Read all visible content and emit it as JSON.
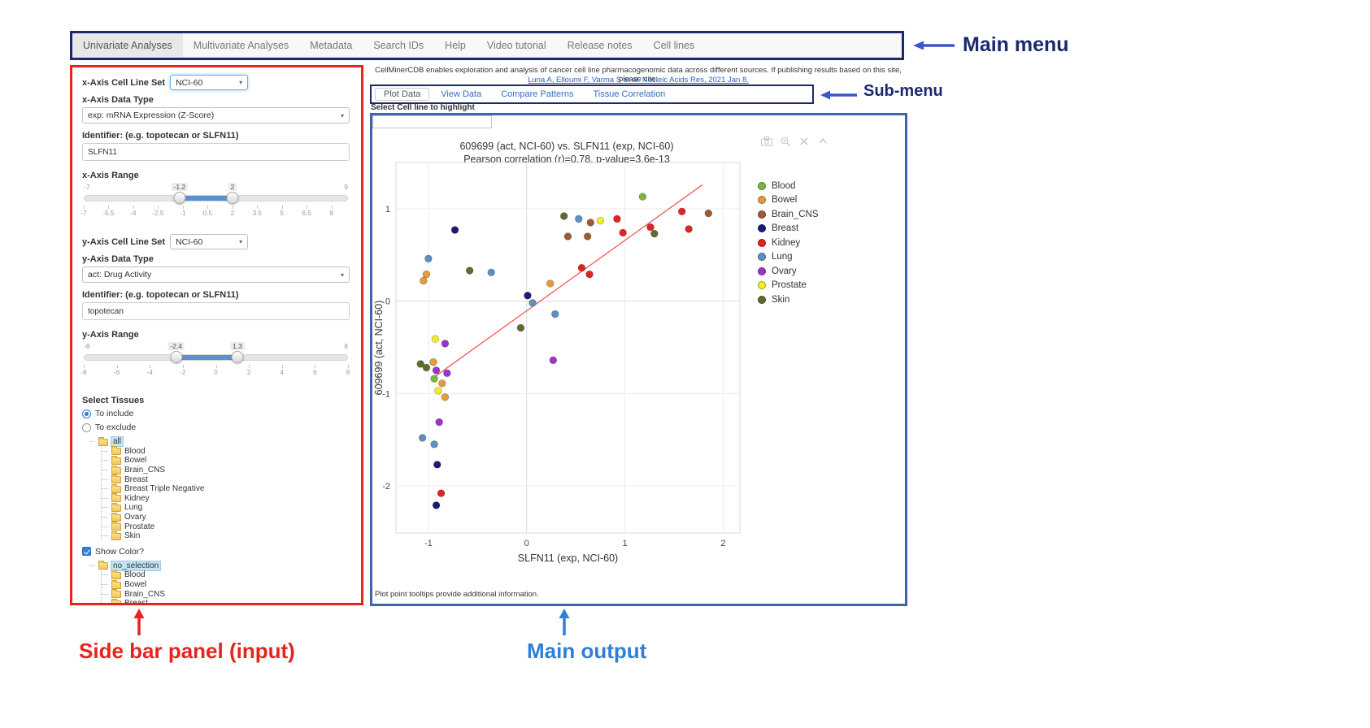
{
  "annotations": {
    "main_menu": "Main menu",
    "sub_menu": "Sub-menu",
    "sidebar": "Side bar panel (input)",
    "main_output": "Main output",
    "navy_color": "#1b2a70",
    "arrow_blue": "#3c55c8",
    "red_color": "#e8231c",
    "blue_color": "#2e7fd6"
  },
  "main_menu": {
    "items": [
      {
        "label": "Univariate Analyses",
        "active": true
      },
      {
        "label": "Multivariate Analyses",
        "active": false
      },
      {
        "label": "Metadata",
        "active": false
      },
      {
        "label": "Search IDs",
        "active": false
      },
      {
        "label": "Help",
        "active": false
      },
      {
        "label": "Video tutorial",
        "active": false
      },
      {
        "label": "Release notes",
        "active": false
      },
      {
        "label": "Cell lines",
        "active": false
      }
    ]
  },
  "citation": {
    "text": "CellMinerCDB enables exploration and analysis of cancer cell line pharmacogenomic data across different sources. If publishing results based on this site, please cite:",
    "link": "Luna A, Elloumi F, Varma S et al. Nucleic Acids Res, 2021 Jan 8."
  },
  "sub_menu": {
    "tabs": [
      {
        "label": "Plot Data",
        "active": true
      },
      {
        "label": "View Data",
        "active": false
      },
      {
        "label": "Compare Patterns",
        "active": false
      },
      {
        "label": "Tissue Correlation",
        "active": false
      }
    ]
  },
  "sidebar": {
    "x_axis": {
      "cell_line_set_label": "x-Axis Cell Line Set",
      "cell_line_set_value": "NCI-60",
      "data_type_label": "x-Axis Data Type",
      "data_type_value": "exp: mRNA Expression (Z-Score)",
      "identifier_label": "Identifier: (e.g. topotecan or SLFN11)",
      "identifier_value": "SLFN11",
      "range_label": "x-Axis Range",
      "range": {
        "min": -7,
        "max": 9,
        "from": -1.2,
        "to": 2,
        "ticks": [
          -7,
          -5.5,
          -4,
          -2.5,
          -1,
          0.5,
          2,
          3.5,
          5,
          6.5,
          8
        ]
      }
    },
    "y_axis": {
      "cell_line_set_label": "y-Axis Cell Line Set",
      "cell_line_set_value": "NCI-60",
      "data_type_label": "y-Axis Data Type",
      "data_type_value": "act: Drug Activity",
      "identifier_label": "Identifier: (e.g. topotecan or SLFN11)",
      "identifier_value": "topotecan",
      "range_label": "y-Axis Range",
      "range": {
        "min": -8,
        "max": 8,
        "from": -2.4,
        "to": 1.3,
        "ticks": [
          -8,
          -6,
          -4,
          -2,
          0,
          2,
          4,
          6,
          8
        ]
      }
    },
    "tissues": {
      "section_label": "Select Tissues",
      "include_label": "To include",
      "exclude_label": "To exclude",
      "include_selected": true,
      "include_tree": {
        "root": "all",
        "items": [
          "Blood",
          "Bowel",
          "Brain_CNS",
          "Breast",
          "Breast Triple Negative",
          "Kidney",
          "Lung",
          "Ovary",
          "Prostate",
          "Skin"
        ]
      },
      "show_color_label": "Show Color?",
      "show_color_checked": true,
      "highlight_tree": {
        "root": "no_selection",
        "items": [
          "Blood",
          "Bowel",
          "Brain_CNS",
          "Breast",
          "Breast Triple Negative",
          "Kidney",
          "Lung",
          "Ovary",
          "Prostate",
          "Skin"
        ]
      }
    }
  },
  "main_output": {
    "highlight_label": "Select Cell line to highlight",
    "highlight_value": "",
    "footer_note": "Plot point tooltips provide additional information.",
    "modebar_icons": [
      "camera-icon",
      "zoom-icon",
      "close-icon",
      "collapse-icon"
    ]
  },
  "chart_data": {
    "type": "scatter",
    "title": "609699 (act, NCI-60) vs. SLFN11 (exp, NCI-60)",
    "subtitle": "Pearson correlation (r)=0.78, p-value=3.6e-13",
    "xlabel": "SLFN11 (exp, NCI-60)",
    "ylabel": "609699 (act, NCI-60)",
    "xlim": [
      -1.33,
      2.17
    ],
    "ylim": [
      -2.51,
      1.5
    ],
    "xticks": [
      -1,
      0,
      1,
      2
    ],
    "yticks": [
      -2,
      -1,
      0,
      1
    ],
    "grid": true,
    "legend_position": "right",
    "trend_line": {
      "x1": -0.95,
      "y1": -0.83,
      "x2": 1.79,
      "y2": 1.26,
      "color": "#f05b5b"
    },
    "series": [
      {
        "name": "Blood",
        "color": "#7db53c",
        "points": [
          [
            1.18,
            1.13
          ],
          [
            -0.94,
            -0.84
          ]
        ]
      },
      {
        "name": "Bowel",
        "color": "#e39b3b",
        "points": [
          [
            -1.02,
            0.29
          ],
          [
            -1.05,
            0.22
          ],
          [
            0.24,
            0.19
          ],
          [
            -0.95,
            -0.66
          ],
          [
            -0.86,
            -0.89
          ],
          [
            -0.83,
            -1.04
          ]
        ]
      },
      {
        "name": "Brain_CNS",
        "color": "#9c5b35",
        "points": [
          [
            0.42,
            0.7
          ],
          [
            0.62,
            0.7
          ],
          [
            0.65,
            0.85
          ],
          [
            1.85,
            0.95
          ]
        ]
      },
      {
        "name": "Breast",
        "color": "#1a1a78",
        "points": [
          [
            -0.73,
            0.77
          ],
          [
            0.01,
            0.06
          ],
          [
            -0.91,
            -1.77
          ],
          [
            -0.92,
            -2.21
          ]
        ]
      },
      {
        "name": "Kidney",
        "color": "#e02421",
        "points": [
          [
            0.56,
            0.36
          ],
          [
            0.64,
            0.29
          ],
          [
            0.92,
            0.89
          ],
          [
            0.98,
            0.74
          ],
          [
            1.26,
            0.8
          ],
          [
            1.58,
            0.97
          ],
          [
            1.65,
            0.78
          ],
          [
            -0.87,
            -2.08
          ]
        ]
      },
      {
        "name": "Lung",
        "color": "#5d8fc0",
        "points": [
          [
            -1.0,
            0.46
          ],
          [
            -0.36,
            0.31
          ],
          [
            0.06,
            -0.02
          ],
          [
            0.29,
            -0.14
          ],
          [
            0.53,
            0.89
          ],
          [
            -1.06,
            -1.48
          ],
          [
            -0.94,
            -1.55
          ]
        ]
      },
      {
        "name": "Ovary",
        "color": "#9a35cc",
        "points": [
          [
            0.27,
            -0.64
          ],
          [
            -0.83,
            -0.46
          ],
          [
            -0.92,
            -0.75
          ],
          [
            -0.81,
            -0.78
          ],
          [
            -0.89,
            -1.31
          ]
        ]
      },
      {
        "name": "Prostate",
        "color": "#f0ee23",
        "points": [
          [
            0.75,
            0.87
          ],
          [
            -0.93,
            -0.41
          ],
          [
            -0.9,
            -0.97
          ]
        ]
      },
      {
        "name": "Skin",
        "color": "#5f6c2e",
        "points": [
          [
            0.38,
            0.92
          ],
          [
            -0.58,
            0.33
          ],
          [
            -0.06,
            -0.29
          ],
          [
            -1.08,
            -0.68
          ],
          [
            -1.02,
            -0.72
          ],
          [
            1.3,
            0.73
          ]
        ]
      }
    ]
  }
}
